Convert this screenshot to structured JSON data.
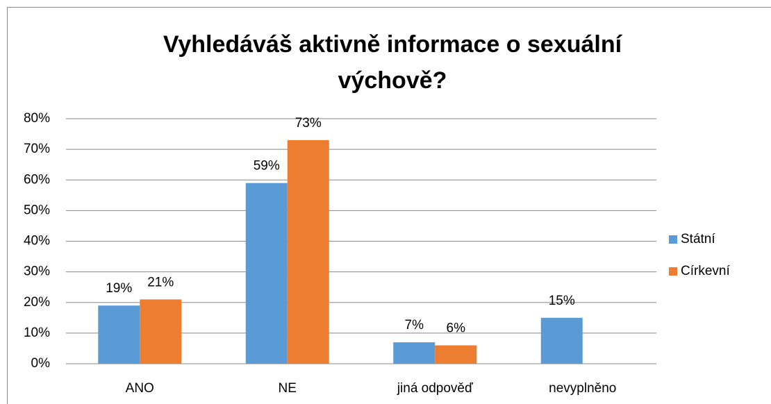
{
  "chart_data": {
    "type": "bar",
    "title": "Vyhledáváš aktivně informace o sexuální výchově?",
    "categories": [
      "ANO",
      "NE",
      "jiná odpověď",
      "nevyplněno"
    ],
    "series": [
      {
        "name": "Státní",
        "color": "#5b9bd5",
        "values": [
          19,
          59,
          7,
          15
        ],
        "value_labels": [
          "19%",
          "59%",
          "7%",
          "15%"
        ]
      },
      {
        "name": "Církevní",
        "color": "#ed7d31",
        "values": [
          21,
          73,
          6,
          null
        ],
        "value_labels": [
          "21%",
          "73%",
          "6%",
          null
        ]
      }
    ],
    "ylim": [
      0,
      80
    ],
    "yticks": [
      {
        "value": 0,
        "label": "0%"
      },
      {
        "value": 10,
        "label": "10%"
      },
      {
        "value": 20,
        "label": "20%"
      },
      {
        "value": 30,
        "label": "30%"
      },
      {
        "value": 40,
        "label": "40%"
      },
      {
        "value": 50,
        "label": "50%"
      },
      {
        "value": 60,
        "label": "60%"
      },
      {
        "value": 70,
        "label": "70%"
      },
      {
        "value": 80,
        "label": "80%"
      }
    ],
    "grid": true,
    "legend": "right"
  }
}
